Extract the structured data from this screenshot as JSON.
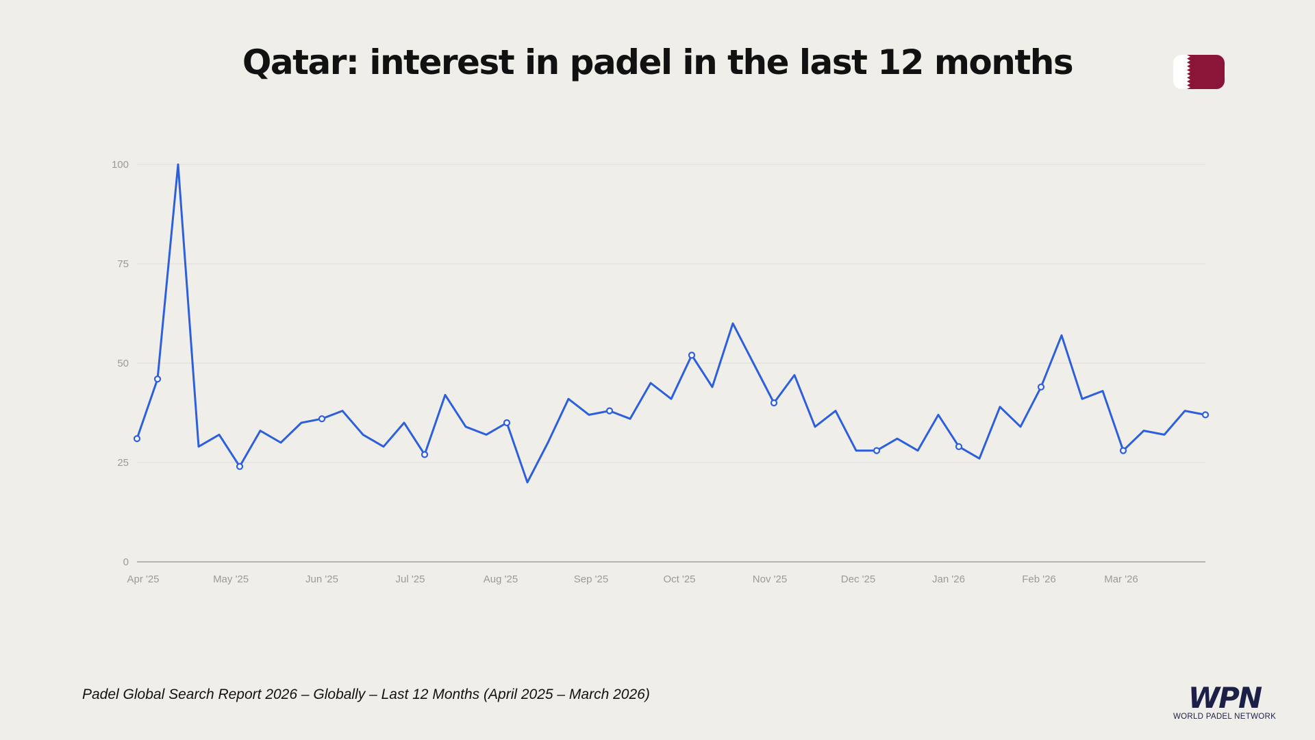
{
  "title": "Qatar: interest in padel in the last 12 months",
  "footer": "Padel Global Search Report 2026 – Globally – Last 12 Months (April 2025 – March 2026)",
  "logo": {
    "text": "WPN",
    "subtitle": "WORLD PADEL NETWORK"
  },
  "flag_icon": "qatar-flag",
  "colors": {
    "background": "#f0eee9",
    "line": "#2d5fdc",
    "flag": "#8a1538",
    "logo": "#1c1f46"
  },
  "chart_data": {
    "type": "line",
    "title": "Qatar: interest in padel in the last 12 months",
    "xlabel": "",
    "ylabel": "",
    "ylim": [
      0,
      100
    ],
    "yticks": [
      0,
      25,
      50,
      75,
      100
    ],
    "grid": true,
    "x_tick_labels": [
      "Apr '25",
      "May '25",
      "Jun '25",
      "Jul '25",
      "Aug '25",
      "Sep '25",
      "Oct '25",
      "Nov '25",
      "Dec '25",
      "Jan '26",
      "Feb '26",
      "Mar '26"
    ],
    "values": [
      31,
      46,
      100,
      29,
      32,
      24,
      33,
      30,
      35,
      36,
      38,
      32,
      29,
      35,
      27,
      42,
      34,
      32,
      35,
      20,
      30,
      41,
      37,
      38,
      36,
      45,
      41,
      52,
      44,
      60,
      50,
      40,
      47,
      34,
      38,
      28,
      28,
      31,
      28,
      37,
      29,
      26,
      39,
      34,
      44,
      57,
      41,
      43,
      28,
      33,
      32,
      38,
      37
    ],
    "marked_points": [
      0,
      1,
      5,
      9,
      14,
      18,
      23,
      27,
      31,
      36,
      40,
      44,
      48,
      52
    ]
  }
}
